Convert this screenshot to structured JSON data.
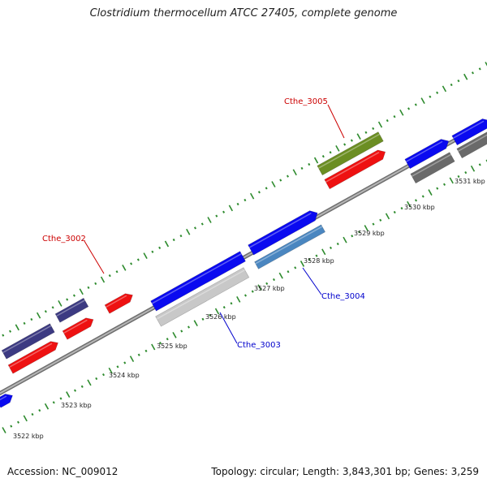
{
  "header": {
    "title": "Clostridium thermocellum ATCC 27405, complete genome"
  },
  "footer": {
    "accession": "Accession: NC_009012",
    "stats": "Topology: circular; Length: 3,843,301 bp; Genes: 3,259"
  },
  "scale": {
    "ticks": [
      "3522 kbp",
      "3523 kbp",
      "3524 kbp",
      "3525 kbp",
      "3526 kbp",
      "3527 kbp",
      "3528 kbp",
      "3529 kbp",
      "3530 kbp",
      "3531 kbp"
    ]
  },
  "genes": {
    "labels": [
      {
        "text": "Cthe_3005",
        "color": "#cc0000"
      },
      {
        "text": "Cthe_3002",
        "color": "#cc0000"
      },
      {
        "text": "Cthe_3003",
        "color": "#0000cc"
      },
      {
        "text": "Cthe_3004",
        "color": "#0000cc"
      }
    ]
  },
  "colors": {
    "forward_cds": "#0a0af0",
    "reverse_cds": "#ee1111",
    "operon": "#3c3a82",
    "highlight_green": "#6b8e23",
    "steel": "#4a86c0",
    "light_gray": "#c8c8c8",
    "dark_gray": "#6a6a6a",
    "backbone": "#8c8c8c",
    "tick_green": "#2e8b2e"
  }
}
